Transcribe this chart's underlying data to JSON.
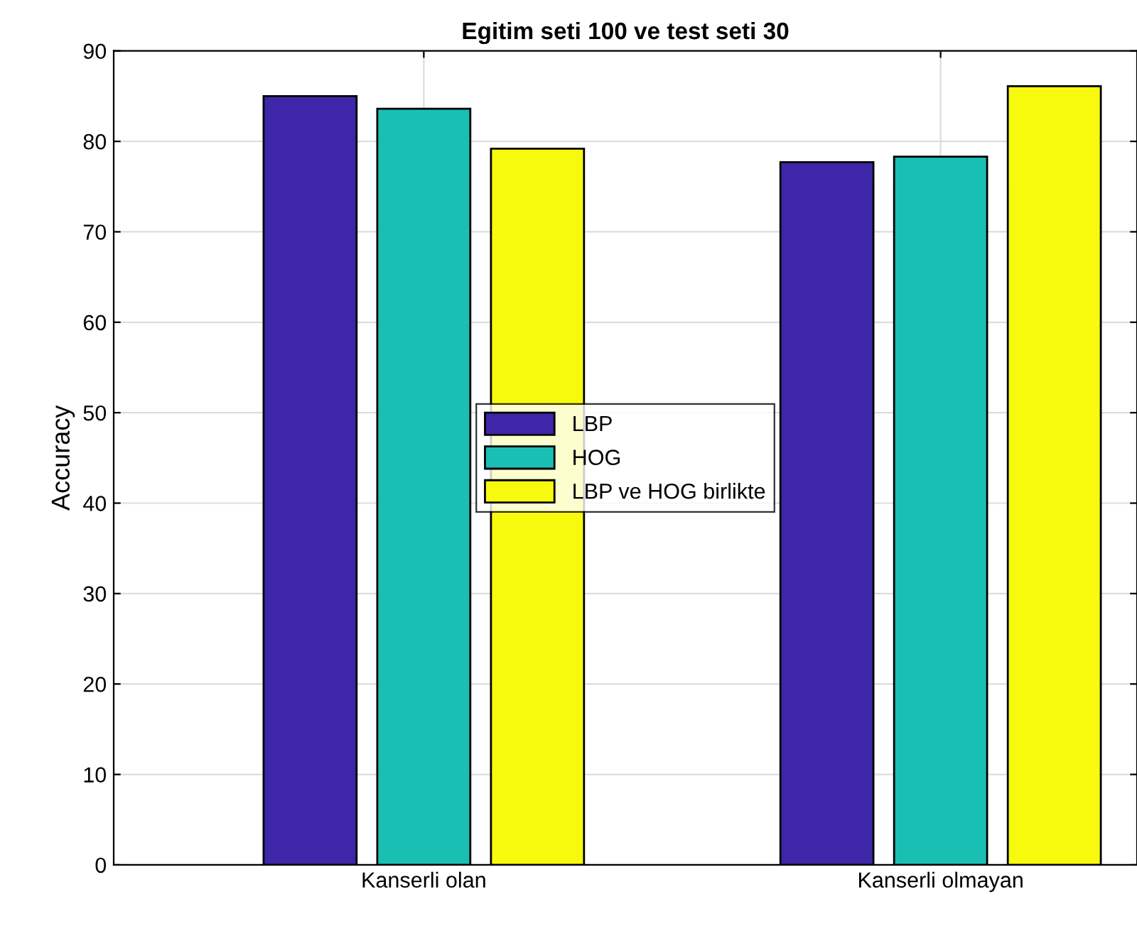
{
  "chart_data": {
    "type": "bar",
    "title": "Egitim seti 100 ve test seti 30",
    "ylabel": "Accuracy",
    "categories": [
      "Kanserli olan",
      "Kanserli olmayan"
    ],
    "series": [
      {
        "name": "LBP",
        "color": "#3e26a8",
        "values": [
          85,
          77.7
        ]
      },
      {
        "name": "HOG",
        "color": "#1abfb3",
        "values": [
          83.6,
          78.3
        ]
      },
      {
        "name": "LBP ve HOG birlikte",
        "color": "#f8fa0d",
        "values": [
          79.2,
          86.1
        ]
      }
    ],
    "ylim": [
      0,
      90
    ],
    "yticks": [
      0,
      10,
      20,
      30,
      40,
      50,
      60,
      70,
      80,
      90
    ],
    "grid": true,
    "legend": "center"
  }
}
